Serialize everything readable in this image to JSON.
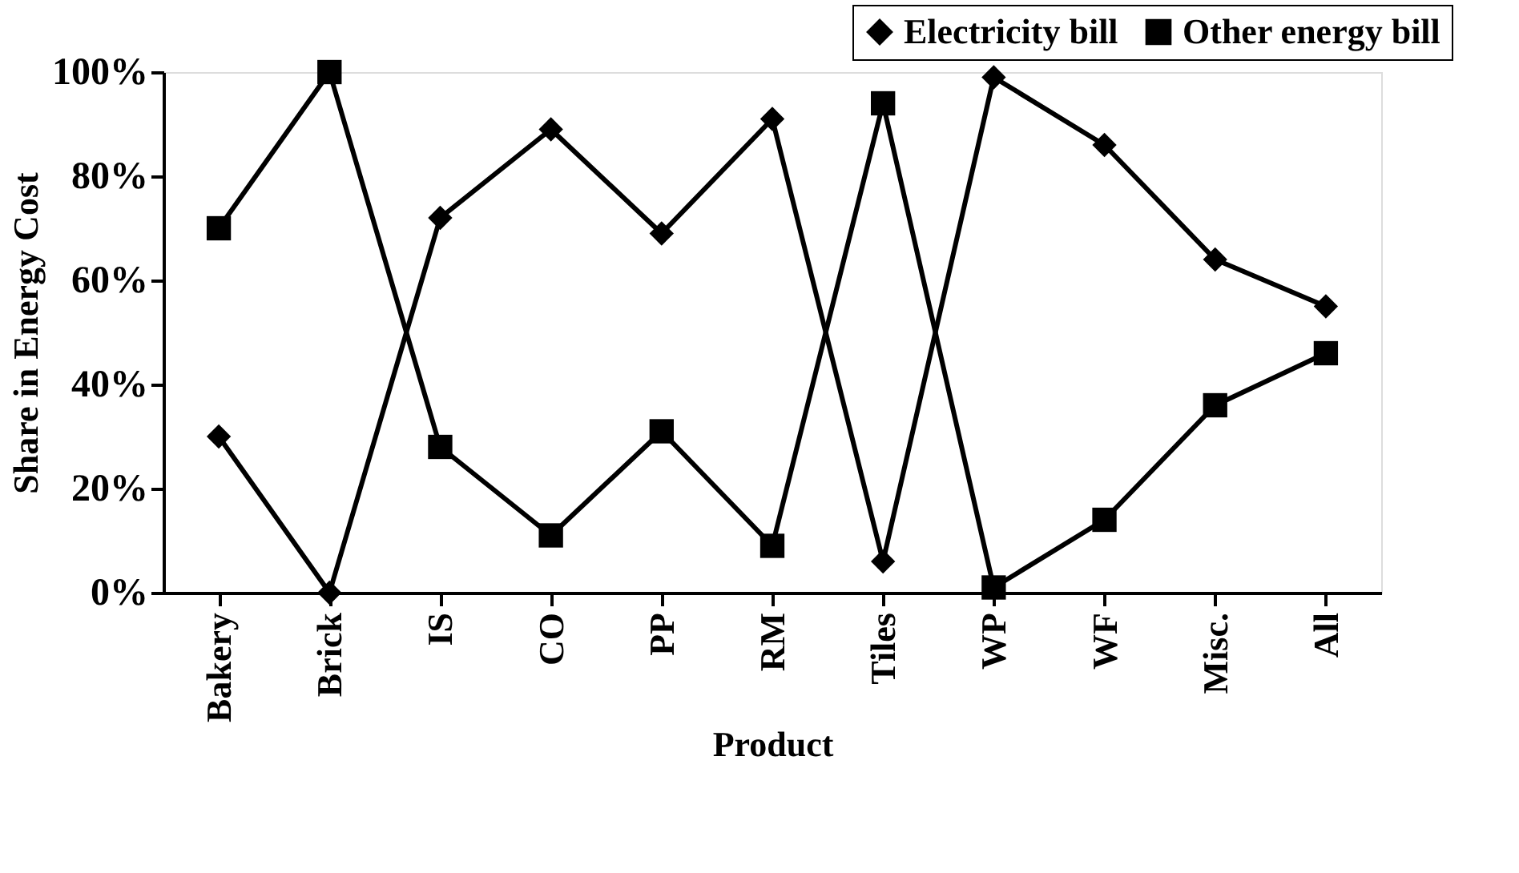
{
  "chart_data": {
    "type": "line",
    "xlabel": "Product",
    "ylabel": "Share in Energy Cost",
    "categories": [
      "Bakery",
      "Brick",
      "IS",
      "CO",
      "PP",
      "RM",
      "Tiles",
      "WP",
      "WF",
      "Misc.",
      "All"
    ],
    "series": [
      {
        "name": "Electricity bill",
        "color": "#000000",
        "marker": "diamond",
        "values": [
          30,
          0,
          72,
          89,
          69,
          91,
          6,
          99,
          86,
          64,
          55
        ]
      },
      {
        "name": "Other energy bill",
        "color": "#000000",
        "marker": "square",
        "values": [
          70,
          100,
          28,
          11,
          31,
          9,
          94,
          1,
          14,
          36,
          46
        ]
      }
    ],
    "ylim": [
      0,
      100
    ],
    "yticks": [
      {
        "value": 0,
        "label": "0%"
      },
      {
        "value": 20,
        "label": "20%"
      },
      {
        "value": 40,
        "label": "40%"
      },
      {
        "value": 60,
        "label": "60%"
      },
      {
        "value": 80,
        "label": "80%"
      },
      {
        "value": 100,
        "label": "100%"
      }
    ],
    "grid": false,
    "legend": "top right",
    "line_style": "solid"
  }
}
